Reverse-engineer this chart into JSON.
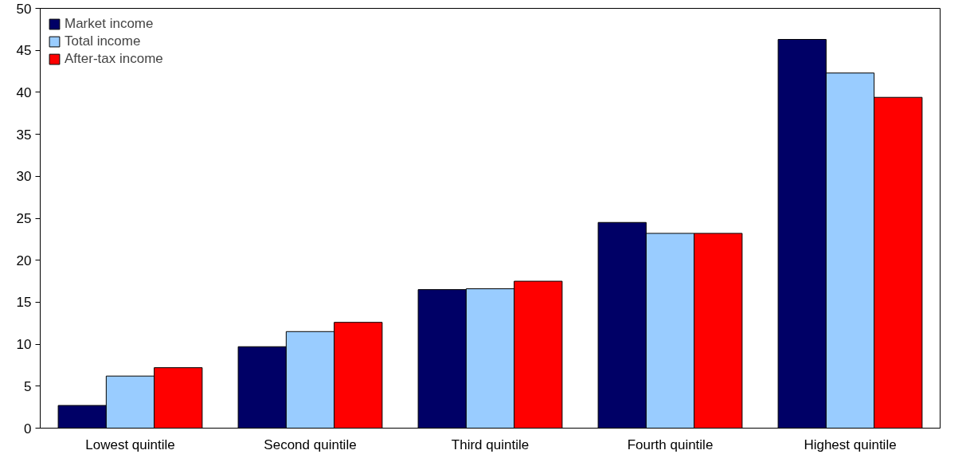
{
  "chart_data": {
    "type": "bar",
    "categories": [
      "Lowest quintile",
      "Second quintile",
      "Third quintile",
      "Fourth quintile",
      "Highest quintile"
    ],
    "series": [
      {
        "name": "Market income",
        "color": "#000066",
        "values": [
          2.7,
          9.7,
          16.5,
          24.5,
          46.3
        ]
      },
      {
        "name": "Total income",
        "color": "#99ccff",
        "values": [
          6.2,
          11.5,
          16.6,
          23.2,
          42.3
        ]
      },
      {
        "name": "After-tax income",
        "color": "#ff0000",
        "values": [
          7.2,
          12.6,
          17.5,
          23.2,
          39.4
        ]
      }
    ],
    "ylim": [
      0,
      50
    ],
    "yticks": [
      0,
      5,
      10,
      15,
      20,
      25,
      30,
      35,
      40,
      45,
      50
    ],
    "grid": false,
    "legend": "top left"
  }
}
